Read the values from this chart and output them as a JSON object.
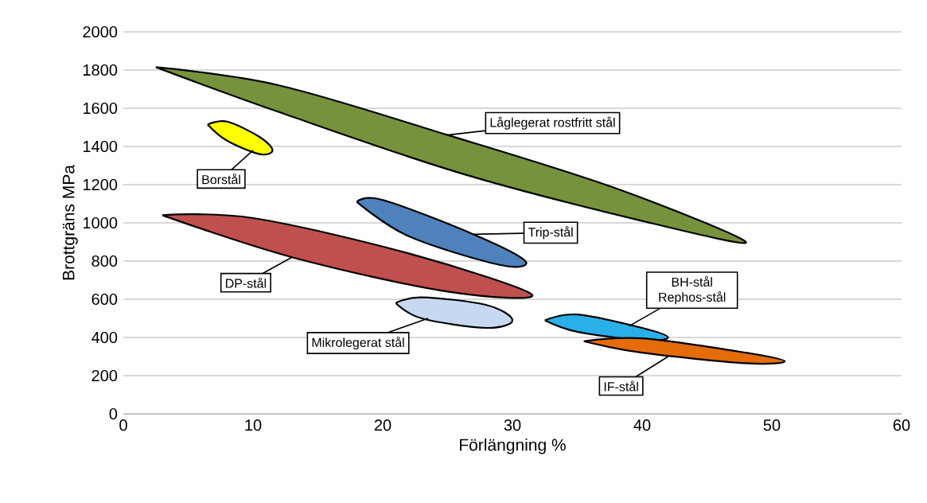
{
  "chart_data": {
    "type": "area",
    "xlabel": "Förlängning  %",
    "ylabel": "Brottgräns MPa",
    "xlim": [
      0,
      60
    ],
    "ylim": [
      0,
      2000
    ],
    "xticks": [
      0,
      10,
      20,
      30,
      40,
      50,
      60
    ],
    "yticks": [
      0,
      200,
      400,
      600,
      800,
      1000,
      1200,
      1400,
      1600,
      1800,
      2000
    ],
    "grid": "y",
    "series": [
      {
        "color": "#76923c",
        "x": [
          2.5,
          12,
          25,
          38,
          48,
          40,
          26,
          12,
          2.5
        ],
        "values": [
          1815,
          1720,
          1460,
          1180,
          900,
          1010,
          1260,
          1580,
          1815
        ]
      },
      {
        "color": "#ffff00",
        "x": [
          6.5,
          8,
          10.5,
          11.5,
          10.5,
          8,
          6.5
        ],
        "values": [
          1515,
          1530,
          1450,
          1380,
          1360,
          1430,
          1515
        ]
      },
      {
        "color": "#c0504d",
        "x": [
          3,
          10,
          22,
          31.5,
          25,
          13,
          3
        ],
        "values": [
          1040,
          1025,
          840,
          625,
          640,
          820,
          1040
        ]
      },
      {
        "color": "#4f81bd",
        "x": [
          18,
          20,
          27,
          31,
          29,
          22,
          18
        ],
        "values": [
          1110,
          1120,
          940,
          800,
          780,
          930,
          1110
        ]
      },
      {
        "color": "#c6d9f1",
        "x": [
          21,
          23,
          28,
          30,
          28,
          23,
          21
        ],
        "values": [
          580,
          610,
          570,
          490,
          450,
          500,
          580
        ]
      },
      {
        "color": "#29b0e8",
        "x": [
          32.5,
          35,
          40,
          42,
          40,
          35,
          32.5
        ],
        "values": [
          490,
          520,
          450,
          400,
          385,
          430,
          490
        ]
      },
      {
        "color": "#e46c0a",
        "x": [
          35.5,
          40,
          48,
          51,
          48,
          40,
          35.5
        ],
        "values": [
          380,
          395,
          320,
          275,
          265,
          320,
          380
        ]
      }
    ],
    "annotations": [
      {
        "text": "Låglegerat rostfritt stål",
        "x": 25,
        "y": 1460
      },
      {
        "text": "Borstål",
        "x": 10,
        "y": 1380
      },
      {
        "text": "Trip-stål",
        "x": 27,
        "y": 940
      },
      {
        "text": "DP-stål",
        "x": 13,
        "y": 820
      },
      {
        "text": "Mikrolegerat stål",
        "x": 23.5,
        "y": 500
      },
      {
        "text": "BH-stål Rephos-stål",
        "x": 39,
        "y": 460
      },
      {
        "text": "IF-stål",
        "x": 42,
        "y": 300
      }
    ]
  }
}
